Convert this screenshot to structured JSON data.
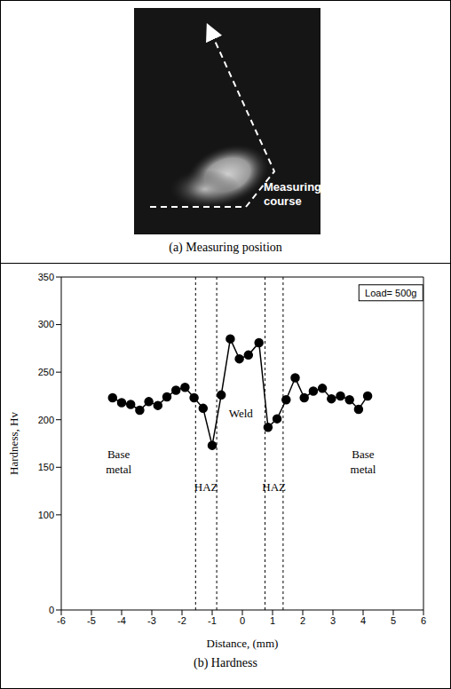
{
  "image_panel": {
    "caption": "(a) Measuring position",
    "annotation": "Measuring course"
  },
  "chart_data": {
    "type": "line",
    "caption": "(b) Hardness",
    "x_label": "Distance, (mm)",
    "y_label": "Hardness, Hv",
    "note": "Load= 500g",
    "x": [
      -4.3,
      -4.0,
      -3.7,
      -3.4,
      -3.1,
      -2.8,
      -2.5,
      -2.2,
      -1.9,
      -1.6,
      -1.3,
      -1.0,
      -0.7,
      -0.4,
      -0.1,
      0.2,
      0.55,
      0.85,
      1.15,
      1.45,
      1.75,
      2.05,
      2.35,
      2.65,
      2.95,
      3.25,
      3.55,
      3.85,
      4.15
    ],
    "values": [
      223,
      218,
      216,
      210,
      219,
      215,
      224,
      231,
      234,
      223,
      212,
      173,
      226,
      285,
      264,
      268,
      281,
      192,
      201,
      221,
      244,
      223,
      230,
      233,
      222,
      225,
      221,
      211,
      225
    ],
    "color": "#000000",
    "marker": "circle",
    "xlim": [
      -6,
      6
    ],
    "xticks": [
      -6,
      -5,
      -4,
      -3,
      -2,
      -1,
      0,
      1,
      2,
      3,
      4,
      5,
      6
    ],
    "ylim": [
      0,
      350
    ],
    "yticks": [
      0,
      100,
      150,
      200,
      250,
      300,
      350
    ],
    "grid": false,
    "zone_boundaries": [
      -1.55,
      -0.85,
      0.75,
      1.35
    ],
    "annotations": [
      {
        "text": "Weld",
        "x": -0.05,
        "y": 203
      },
      {
        "text": "Base metal",
        "x": -4.1,
        "y": 160
      },
      {
        "text": "Base metal",
        "x": 4.0,
        "y": 160
      },
      {
        "text": "HAZ",
        "x": -1.2,
        "y": 125
      },
      {
        "text": "HAZ",
        "x": 1.05,
        "y": 125
      }
    ]
  }
}
